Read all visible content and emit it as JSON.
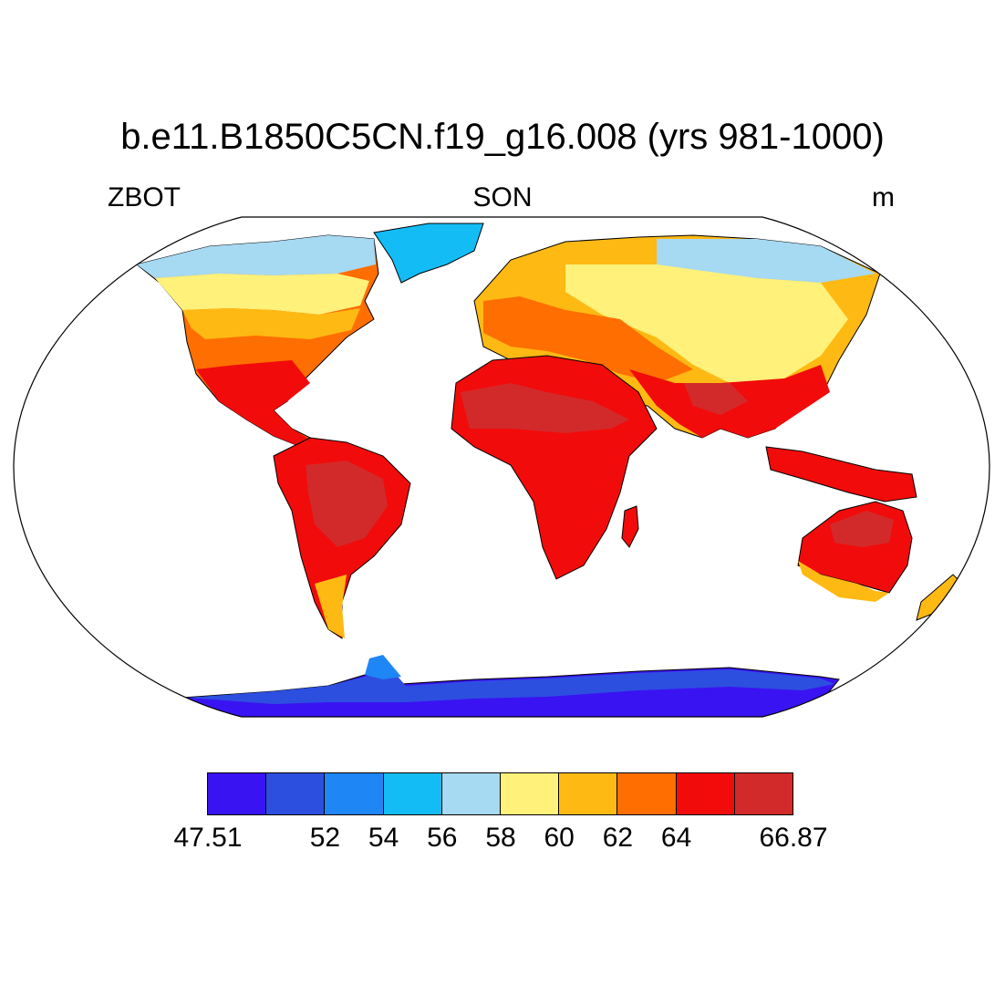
{
  "header": {
    "title": "b.e11.B1850C5CN.f19_g16.008 (yrs 981-1000)",
    "left_label": "ZBOT",
    "center_label": "SON",
    "right_label": "m"
  },
  "colorbar": {
    "colors": [
      "#3a13f2",
      "#2d4fe0",
      "#1f86f5",
      "#14bcf6",
      "#a6d9f2",
      "#fff17a",
      "#ffb913",
      "#ff6e00",
      "#f20b0b",
      "#d22a2a"
    ],
    "labels": [
      "47.51",
      "52",
      "54",
      "56",
      "58",
      "60",
      "62",
      "64",
      "66.87"
    ]
  },
  "map": {
    "projection": "robinson",
    "variable": "ZBOT",
    "units": "m",
    "season": "SON"
  }
}
